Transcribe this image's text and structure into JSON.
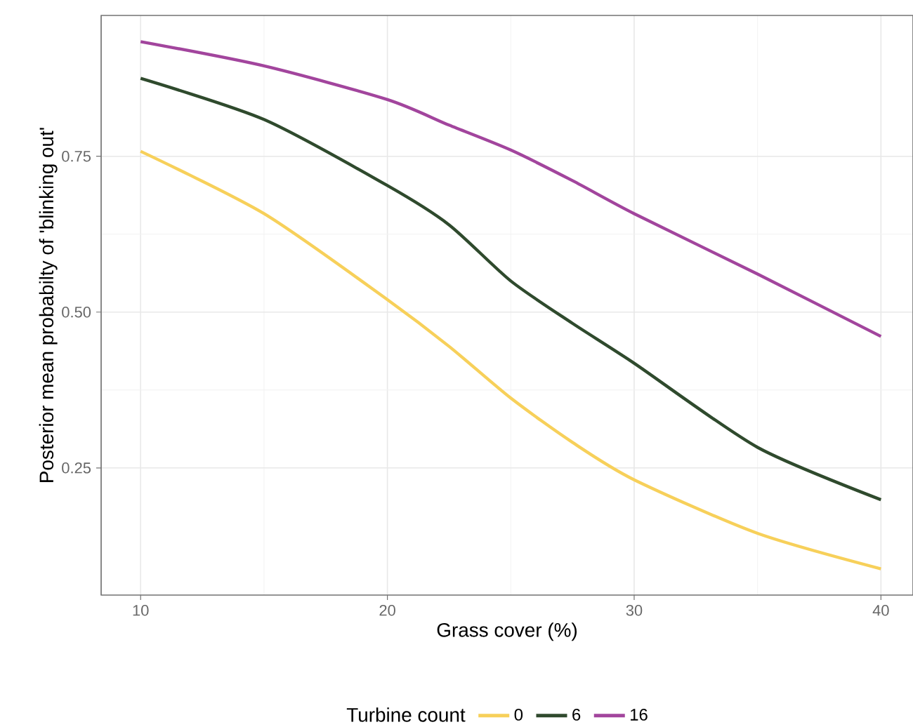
{
  "chart_data": {
    "type": "line",
    "xlabel": "Grass cover (%)",
    "ylabel": "Posterior mean probabilty of 'blinking out'",
    "legend_title": "Turbine count",
    "x": [
      10,
      15,
      20,
      22.5,
      25,
      27.5,
      30,
      35,
      40
    ],
    "series": [
      {
        "name": "0",
        "color": "#f7d05a",
        "values": [
          0.758,
          0.658,
          0.52,
          0.445,
          0.362,
          0.291,
          0.231,
          0.145,
          0.088
        ]
      },
      {
        "name": "6",
        "color": "#2f4a2d",
        "values": [
          0.875,
          0.809,
          0.703,
          0.64,
          0.55,
          0.482,
          0.418,
          0.283,
          0.199
        ]
      },
      {
        "name": "16",
        "color": "#a2459d",
        "values": [
          0.934,
          0.895,
          0.841,
          0.8,
          0.76,
          0.711,
          0.658,
          0.561,
          0.461
        ]
      }
    ],
    "xlim": [
      8.4,
      41.3
    ],
    "ylim": [
      0.046,
      0.976
    ],
    "xticks": [
      10,
      20,
      30,
      40
    ],
    "yticks": [
      {
        "value": 0.25,
        "label": "0.25"
      },
      {
        "value": 0.5,
        "label": "0.50"
      },
      {
        "value": 0.75,
        "label": "0.75"
      }
    ],
    "grid": true,
    "legend": "bottom",
    "marker": "none",
    "line_style": "solid"
  }
}
